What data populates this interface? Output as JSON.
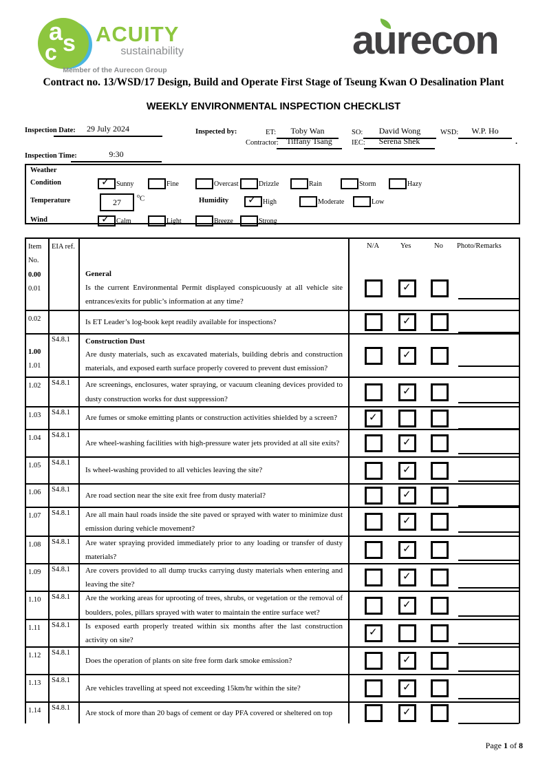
{
  "logos": {
    "acuity": {
      "letter_a": "a",
      "letter_s": "s",
      "letter_c": "c",
      "name": "ACUITY",
      "subtitle": "sustainability",
      "tagline": "Member of the Aurecon Group",
      "green": "#8dc63f",
      "blue": "#4ab5e2",
      "gray": "#8a8c8e"
    },
    "aurecon": {
      "wordmark": "aurecon",
      "dark": "#414042",
      "leaf_green": "#74b841"
    }
  },
  "titles": {
    "contract_line": "Contract no.  13/WSD/17 Design, Build and Operate First Stage of Tseung Kwan O Desalination Plant",
    "checklist_title": "WEEKLY ENVIRONMENTAL INSPECTION CHECKLIST"
  },
  "inspection": {
    "date_label": "Inspection Date:",
    "date_value": "29 July 2024",
    "inspected_by_label": "Inspected by:",
    "time_label": "Inspection Time:",
    "time_value": "9:30",
    "fields": [
      {
        "label": "ET:",
        "value": "Toby Wan"
      },
      {
        "label": "SO:",
        "value": "David Wong"
      },
      {
        "label": "WSD:",
        "value": "W.P. Ho"
      },
      {
        "label": "Contractor:",
        "value": "Tiffany Tsang"
      },
      {
        "label": "IEC:",
        "value": "Serena Shek"
      }
    ],
    "stray_mark": "."
  },
  "weather": {
    "title": "Weather",
    "condition_label": "Condition",
    "condition_options": [
      {
        "label": "Sunny",
        "checked": true
      },
      {
        "label": "Fine",
        "checked": false
      },
      {
        "label": "Overcast",
        "checked": false
      },
      {
        "label": "Drizzle",
        "checked": false
      },
      {
        "label": "Rain",
        "checked": false
      },
      {
        "label": "Storm",
        "checked": false
      },
      {
        "label": "Hazy",
        "checked": false
      }
    ],
    "temperature_label": "Temperature",
    "temperature_value": "27",
    "temperature_degree": "o",
    "temperature_unit": "C",
    "humidity_label": "Humidity",
    "humidity_options": [
      {
        "label": "High",
        "checked": true
      },
      {
        "label": "Moderate",
        "checked": false
      },
      {
        "label": "Low",
        "checked": false
      }
    ],
    "wind_label": "Wind",
    "wind_options": [
      {
        "label": "Calm",
        "checked": true
      },
      {
        "label": "Light",
        "checked": false
      },
      {
        "label": "Breeze",
        "checked": false
      },
      {
        "label": "Strong",
        "checked": false
      }
    ]
  },
  "checklist": {
    "headers": {
      "item_line1": "Item",
      "item_line2": "No.",
      "eia": "EIA ref.",
      "na": "N/A",
      "yes": "Yes",
      "no": "No",
      "remarks": "Photo/Remarks"
    },
    "rows": [
      {
        "item": "0.00",
        "item_bold": true,
        "item2": "0.01",
        "eia": "",
        "section": "General",
        "question": "Is the current Environmental Permit displayed conspicuously at all vehicle site entrances/exits for public’s information at any time?",
        "answer": "yes"
      },
      {
        "item": "0.02",
        "item_bold": false,
        "item2": "",
        "eia": "",
        "section": "",
        "question": "Is ET Leader’s log-book kept readily available for inspections?",
        "answer": "yes"
      },
      {
        "item": "1.00",
        "item_bold": true,
        "item2": "1.01",
        "eia": "S4.8.1",
        "section": "Construction Dust",
        "question": "Are dusty materials, such as excavated materials, building debris and construction materials, and exposed earth surface properly covered to prevent dust emission?",
        "answer": "yes"
      },
      {
        "item": "1.02",
        "item_bold": false,
        "item2": "",
        "eia": "S4.8.1",
        "section": "",
        "question": "Are screenings, enclosures, water spraying, or vacuum cleaning devices provided to dusty construction works for dust suppression?",
        "answer": "yes"
      },
      {
        "item": "1.03",
        "item_bold": false,
        "item2": "",
        "eia": "S4.8.1",
        "section": "",
        "question": "Are fumes or smoke emitting plants or construction activities shielded by a screen?",
        "answer": "na"
      },
      {
        "item": "1.04",
        "item_bold": false,
        "item2": "",
        "eia": "S4.8.1",
        "section": "",
        "question": "Are wheel-washing facilities with high-pressure water jets provided at all site exits?",
        "answer": "yes"
      },
      {
        "item": "1.05",
        "item_bold": false,
        "item2": "",
        "eia": "S4.8.1",
        "section": "",
        "question": "Is wheel-washing provided to all vehicles leaving the site?",
        "answer": "yes"
      },
      {
        "item": "1.06",
        "item_bold": false,
        "item2": "",
        "eia": "S4.8.1",
        "section": "",
        "question": "Are road section near the site exit free from dusty material?",
        "answer": "yes"
      },
      {
        "item": "1.07",
        "item_bold": false,
        "item2": "",
        "eia": "S4.8.1",
        "section": "",
        "question": "Are all main haul roads inside the site paved or sprayed with water to minimize dust emission during vehicle movement?",
        "answer": "yes"
      },
      {
        "item": "1.08",
        "item_bold": false,
        "item2": "",
        "eia": "S4.8.1",
        "section": "",
        "question": "Are water spraying provided immediately prior to any loading or transfer of dusty materials?",
        "answer": "yes"
      },
      {
        "item": "1.09",
        "item_bold": false,
        "item2": "",
        "eia": "S4.8.1",
        "section": "",
        "question": "Are covers provided to all dump trucks carrying dusty materials when entering and leaving the site?",
        "answer": "yes"
      },
      {
        "item": "1.10",
        "item_bold": false,
        "item2": "",
        "eia": "S4.8.1",
        "section": "",
        "question": "Are the working areas for uprooting of trees, shrubs, or vegetation or the removal of boulders, poles, pillars sprayed with water to maintain the entire surface wet?",
        "answer": "yes"
      },
      {
        "item": "1.11",
        "item_bold": false,
        "item2": "",
        "eia": "S4.8.1",
        "section": "",
        "question": "Is exposed earth properly treated within six months after the last construction activity on site?",
        "answer": "na"
      },
      {
        "item": "1.12",
        "item_bold": false,
        "item2": "",
        "eia": "S4.8.1",
        "section": "",
        "question": "Does the operation of plants on site free form dark smoke emission?",
        "answer": "yes"
      },
      {
        "item": "1.13",
        "item_bold": false,
        "item2": "",
        "eia": "S4.8.1",
        "section": "",
        "question": "Are vehicles travelling at speed not exceeding 15km/hr within the site?",
        "answer": "yes"
      },
      {
        "item": "1.14",
        "item_bold": false,
        "item2": "",
        "eia": "S4.8.1",
        "section": "",
        "question": "Are stock of more than 20 bags of cement or day PFA covered or sheltered on top",
        "answer": "yes"
      }
    ]
  },
  "footer": {
    "prefix": "Page",
    "page_number": "1",
    "of_word": "of",
    "total_pages": "8"
  }
}
